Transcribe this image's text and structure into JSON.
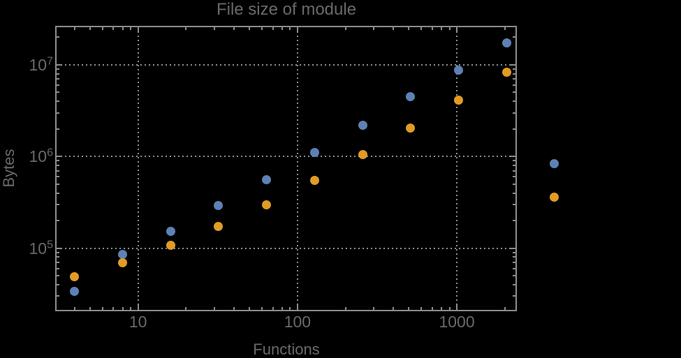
{
  "chart_data": {
    "type": "scatter",
    "title": "File size of module",
    "xlabel": "Functions",
    "ylabel": "Bytes",
    "x_scale": "log",
    "y_scale": "log",
    "grid": "dotted",
    "legend": "none",
    "x_range": [
      3.08,
      2333
    ],
    "y_range": [
      21300,
      25700000
    ],
    "x_ticks": [
      10,
      100,
      1000
    ],
    "x_tick_labels": [
      "10",
      "100",
      "1000"
    ],
    "y_ticks": [
      100000,
      1000000,
      10000000
    ],
    "y_tick_labels": [
      "10^5",
      "10^6",
      "10^7"
    ],
    "x": [
      4,
      8,
      16,
      32,
      64,
      128,
      256,
      512,
      1024,
      2048,
      4096
    ],
    "series": [
      {
        "name": "blue",
        "color": "#5E81B5",
        "values": [
          34000,
          86000,
          152000,
          293000,
          559000,
          1100000,
          2190000,
          4480000,
          8700000,
          17200000,
          840000
        ]
      },
      {
        "name": "orange",
        "color": "#E19C24",
        "values": [
          49000,
          70000,
          107000,
          173000,
          298000,
          550000,
          1050000,
          2040000,
          4100000,
          8250000,
          360000
        ]
      }
    ],
    "frame_color": "#8d8d8d",
    "gridline_color": "#8f8f8f",
    "label_color": "#696969",
    "background_color": "#000000"
  }
}
